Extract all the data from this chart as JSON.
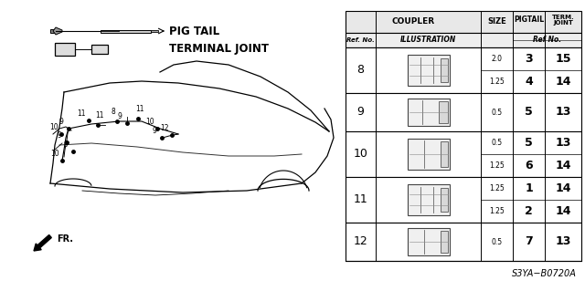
{
  "bg_color": "#ffffff",
  "part_code": "S3YA−B0720A",
  "pig_tail_label": "PIG TAIL",
  "terminal_joint_label": "TERMINAL JOINT",
  "rows": [
    {
      "ref": "8",
      "size": [
        "2.0",
        "1.25"
      ],
      "pigtail": [
        "3",
        "4"
      ],
      "term": [
        "15",
        "14"
      ]
    },
    {
      "ref": "9",
      "size": [
        "0.5"
      ],
      "pigtail": [
        "5"
      ],
      "term": [
        "13"
      ]
    },
    {
      "ref": "10",
      "size": [
        "0.5",
        "1.25"
      ],
      "pigtail": [
        "5",
        "6"
      ],
      "term": [
        "13",
        "14"
      ]
    },
    {
      "ref": "11",
      "size": [
        "1.25",
        "1.25"
      ],
      "pigtail": [
        "1",
        "2"
      ],
      "term": [
        "14",
        "14"
      ]
    },
    {
      "ref": "12",
      "size": [
        "0.5"
      ],
      "pigtail": [
        "7"
      ],
      "term": [
        "13"
      ]
    }
  ],
  "connector_labels": [
    [
      75,
      178,
      "9"
    ],
    [
      67,
      172,
      "10"
    ],
    [
      73,
      163,
      "9"
    ],
    [
      80,
      153,
      "9"
    ],
    [
      68,
      143,
      "10"
    ],
    [
      97,
      187,
      "11"
    ],
    [
      107,
      182,
      "11"
    ],
    [
      128,
      186,
      "8"
    ],
    [
      139,
      184,
      "9"
    ],
    [
      151,
      189,
      "11"
    ],
    [
      172,
      178,
      "10"
    ],
    [
      177,
      168,
      "9"
    ],
    [
      188,
      171,
      "12"
    ]
  ]
}
